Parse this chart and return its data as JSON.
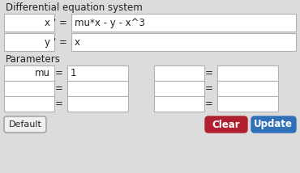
{
  "title": "Differential equation system",
  "bg_color": "#dcdcdc",
  "box_bg": "#ffffff",
  "box_border": "#b0b0b0",
  "var1": "x",
  "var2": "y",
  "eq1": "mu*x - y - x^3",
  "eq2": "x",
  "params_label": "Parameters",
  "param1_name": "mu",
  "param1_value": "1",
  "btn_default_label": "Default",
  "btn_clear_label": "Clear",
  "btn_update_label": "Update",
  "btn_clear_color": "#b02030",
  "btn_update_color": "#3070b8",
  "btn_default_bg": "#f0f0f0",
  "btn_default_border": "#999999",
  "text_color": "#222222",
  "btn_text_color": "#ffffff"
}
